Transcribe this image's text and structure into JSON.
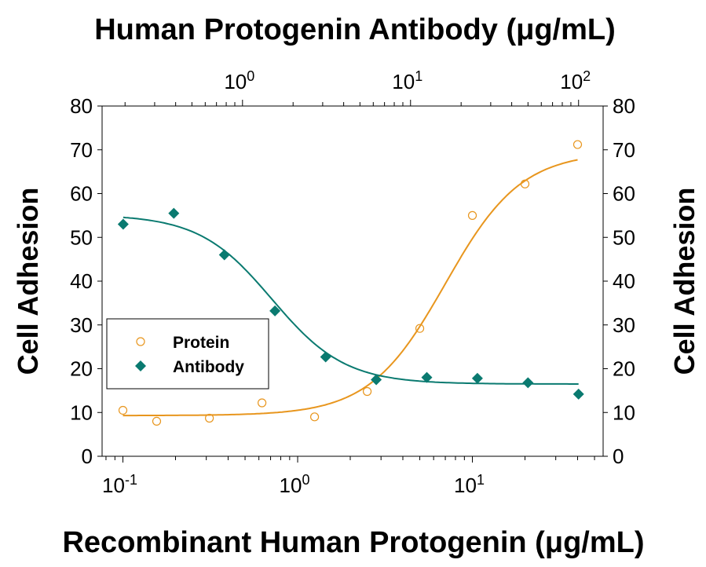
{
  "chart_data": {
    "type": "scatter",
    "title": "Human Protogenin Antibody (μg/mL)",
    "xlabel": "Recombinant Human Protogenin (μg/mL)",
    "ylabel": "Cell Adhesion",
    "ylabel_right": "Cell Adhesion",
    "ylim": [
      0,
      80
    ],
    "yticks": [
      "0",
      "10",
      "20",
      "30",
      "40",
      "50",
      "60",
      "70",
      "80"
    ],
    "x_bottom": {
      "scale": "log",
      "range": [
        0.076,
        56
      ],
      "ticks": [
        {
          "base": "10",
          "exp": "-1",
          "value": 0.1
        },
        {
          "base": "10",
          "exp": "0",
          "value": 1
        },
        {
          "base": "10",
          "exp": "1",
          "value": 10
        }
      ]
    },
    "x_top": {
      "scale": "log",
      "range": [
        0.146,
        140
      ],
      "ticks": [
        {
          "base": "10",
          "exp": "0",
          "value": 1
        },
        {
          "base": "10",
          "exp": "1",
          "value": 10
        },
        {
          "base": "10",
          "exp": "2",
          "value": 100
        }
      ]
    },
    "grid": false,
    "legend_position": "center-left",
    "series": [
      {
        "name": "Protein",
        "axis": "bottom",
        "marker": "open-circle",
        "color": "#e8961e",
        "x": [
          0.1,
          0.156,
          0.3125,
          0.625,
          1.25,
          2.5,
          5,
          10,
          20,
          40
        ],
        "y": [
          10.5,
          8.0,
          8.7,
          12.2,
          9.0,
          14.8,
          29.2,
          55.0,
          62.2,
          71.2
        ],
        "fit": {
          "bottom": 9.3,
          "top": 69.5,
          "ec50": 7.0,
          "hill": 2.0
        }
      },
      {
        "name": "Antibody",
        "axis": "top",
        "marker": "filled-diamond",
        "color": "#0a7a70",
        "x": [
          0.195,
          0.39,
          0.78,
          1.56,
          3.125,
          6.25,
          12.5,
          25,
          50,
          100
        ],
        "y": [
          53.0,
          55.5,
          46.0,
          33.2,
          22.7,
          17.5,
          18.0,
          17.8,
          16.8,
          14.2
        ],
        "fit": {
          "bottom": 16.5,
          "top": 55.2,
          "ec50": 1.5,
          "hill": 2.0
        }
      }
    ]
  }
}
